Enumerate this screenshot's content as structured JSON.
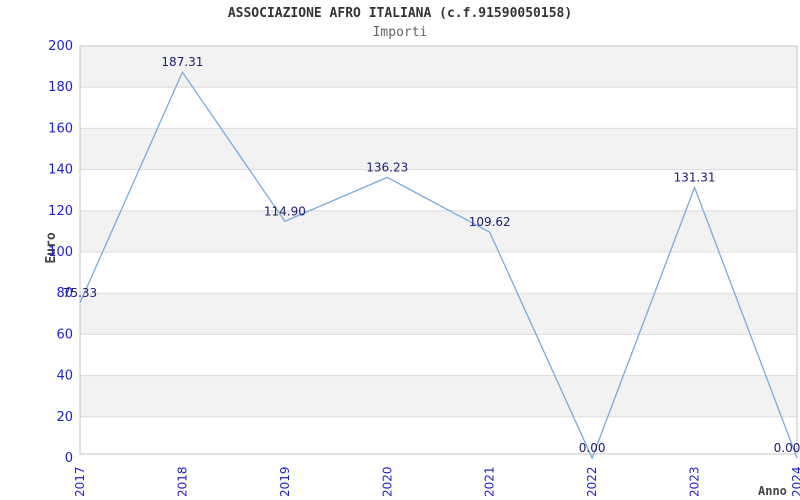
{
  "chart_data": {
    "type": "line",
    "title": "ASSOCIAZIONE AFRO ITALIANA (c.f.91590050158)",
    "subtitle": "Importi",
    "xlabel": "Anno",
    "ylabel": "Euro",
    "categories": [
      "2017",
      "2018",
      "2019",
      "2020",
      "2021",
      "2022",
      "2023",
      "2024"
    ],
    "values": [
      75.33,
      187.31,
      114.9,
      136.23,
      109.62,
      0.0,
      131.31,
      0.0
    ],
    "point_labels": [
      "75.33",
      "187.31",
      "114.90",
      "136.23",
      "109.62",
      "0.00",
      "131.31",
      "0.00"
    ],
    "ylim": [
      0,
      200
    ],
    "ytick_step": 20,
    "ytick_labels": [
      "0",
      "20",
      "40",
      "60",
      "80",
      "100",
      "120",
      "140",
      "160",
      "180",
      "200"
    ],
    "grid": true,
    "legend_position": "none",
    "colors": {
      "line": "#7aaade",
      "tick_label": "#2020d0",
      "value_label": "#202070",
      "band_gray": "#f2f2f2",
      "band_white": "#ffffff",
      "gridline": "#dcdcdc",
      "axis_border": "#c4c4c4",
      "title": "#333333",
      "subtitle": "#666666",
      "axis_title": "#444444"
    }
  }
}
